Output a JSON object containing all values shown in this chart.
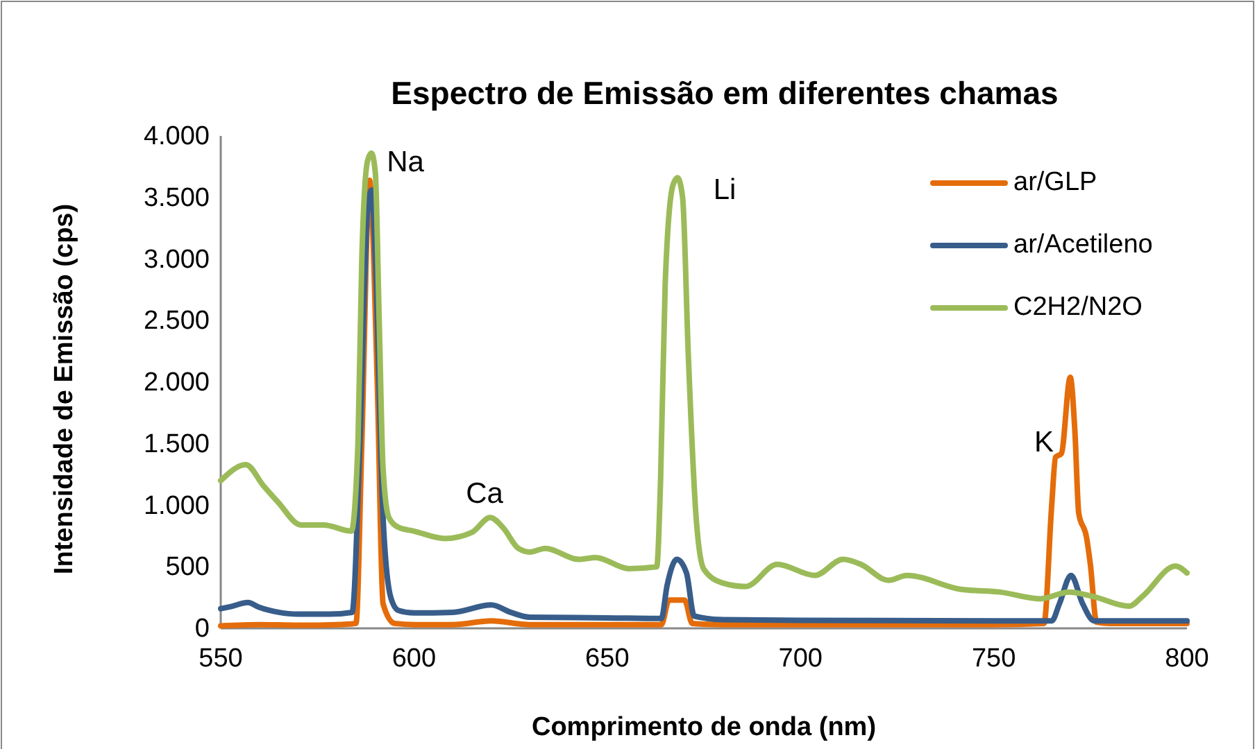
{
  "chart_data": {
    "type": "line",
    "title": "Espectro de Emissão em diferentes chamas",
    "xlabel": "Comprimento de onda (nm)",
    "ylabel": "Intensidade de Emissão (cps)",
    "xlim": [
      550,
      800
    ],
    "xticks": [
      550,
      600,
      650,
      700,
      750,
      800
    ],
    "ylim": [
      0,
      4000
    ],
    "yticks": [
      0,
      500,
      {
        "value": 1000,
        "label": "1.000"
      },
      {
        "value": 1500,
        "label": "1.500"
      },
      {
        "value": 2000,
        "label": "2.000"
      },
      {
        "value": 2500,
        "label": "2.500"
      },
      {
        "value": 3000,
        "label": "3.000"
      },
      {
        "value": 3500,
        "label": "3.500"
      },
      {
        "value": 4000,
        "label": "4.000"
      }
    ],
    "grid": false,
    "legend": "top right",
    "marker": "none",
    "line_style": "solid",
    "series": [
      {
        "name": "ar/GLP",
        "color": "#e46c0a",
        "x": [
          550,
          560,
          570,
          580,
          585,
          586.5,
          588.5,
          590.5,
          592,
          595,
          600,
          610,
          620,
          630,
          650,
          664,
          666,
          670,
          672,
          680,
          700,
          750,
          763,
          765,
          766,
          767.5,
          769.8,
          771,
          772,
          774,
          775,
          776.6,
          780,
          800
        ],
        "values": [
          20,
          30,
          25,
          30,
          40,
          1500,
          3640,
          2000,
          200,
          40,
          30,
          30,
          60,
          30,
          30,
          30,
          230,
          230,
          40,
          30,
          30,
          30,
          40,
          1000,
          1390,
          1420,
          2040,
          1600,
          935,
          740,
          520,
          50,
          40,
          40
        ]
      },
      {
        "name": "ar/Acetileno",
        "color": "#385d8a",
        "x": [
          550,
          553,
          557,
          560,
          565,
          570,
          578,
          584,
          586,
          588,
          589,
          590,
          592,
          594,
          596,
          600,
          610,
          620,
          625,
          630,
          650,
          664,
          665.5,
          668,
          670.5,
          672.5,
          680,
          700,
          750,
          765,
          767,
          770,
          773,
          776,
          800
        ],
        "values": [
          160,
          180,
          210,
          170,
          130,
          115,
          115,
          130,
          1500,
          3400,
          3560,
          3000,
          900,
          250,
          145,
          125,
          130,
          190,
          130,
          90,
          85,
          80,
          350,
          560,
          450,
          100,
          70,
          65,
          60,
          60,
          200,
          430,
          200,
          60,
          60
        ]
      },
      {
        "name": "C2H2/N2O",
        "color": "#9bbb59",
        "x": [
          550,
          556.5,
          561,
          564.7,
          570.8,
          576.6,
          583.8,
          585.5,
          586.5,
          588,
          589,
          590,
          591,
          592,
          593.5,
          596,
          600,
          608,
          615,
          619.7,
          623,
          627,
          630,
          634,
          642.6,
          647,
          655.6,
          662.8,
          663.8,
          665,
          667,
          668.2,
          669.5,
          671,
          673,
          675,
          679.7,
          685.8,
          694,
          703.7,
          711,
          715.6,
          722.8,
          727.5,
          741.8,
          751.5,
          762,
          769.5,
          775.6,
          785,
          788.5,
          797,
          800
        ],
        "values": [
          1200,
          1330,
          1160,
          1030,
          840,
          840,
          790,
          1500,
          3000,
          3800,
          3860,
          3700,
          2500,
          1300,
          900,
          820,
          790,
          730,
          780,
          900,
          820,
          650,
          620,
          650,
          560,
          575,
          485,
          500,
          1200,
          2800,
          3600,
          3660,
          3500,
          2200,
          900,
          480,
          370,
          340,
          520,
          430,
          560,
          520,
          390,
          430,
          315,
          295,
          240,
          295,
          260,
          180,
          260,
          505,
          450
        ]
      }
    ],
    "annotations": [
      "Na",
      "Li",
      "Ca",
      "K"
    ]
  }
}
